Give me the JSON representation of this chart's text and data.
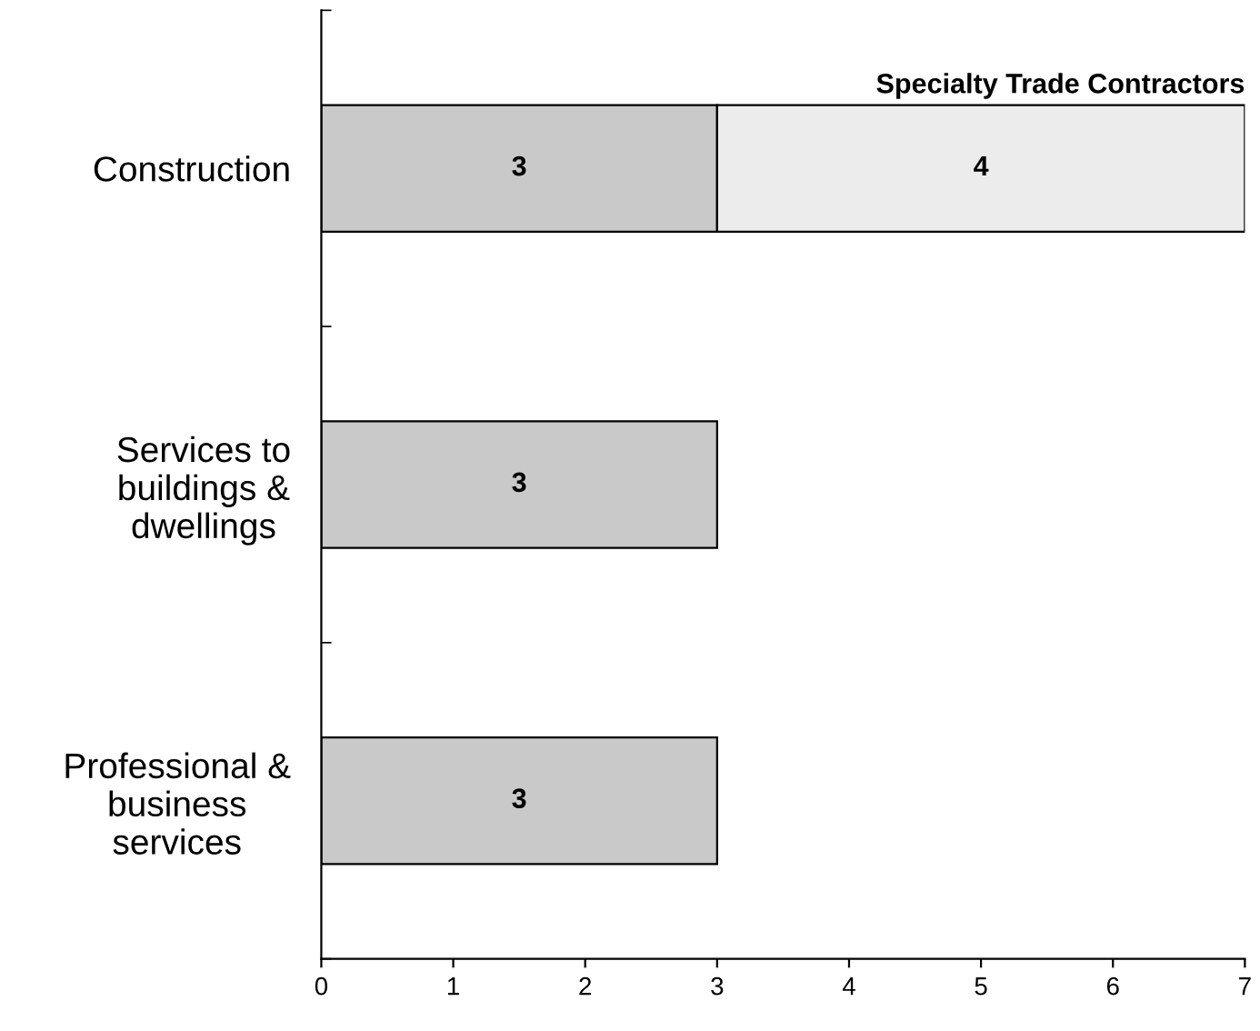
{
  "chart_data": {
    "type": "bar",
    "orientation": "horizontal",
    "stacked": true,
    "categories": [
      "Construction",
      "Services to\nbuildings &\ndwellings",
      "Professional &\nbusiness\nservices"
    ],
    "series": [
      {
        "color": "#c9c9c9",
        "values": [
          3,
          3,
          3
        ]
      },
      {
        "name": "Specialty Trade Contractors",
        "color": "#ececec",
        "values": [
          4,
          null,
          null
        ]
      }
    ],
    "xlim": [
      0,
      7
    ],
    "xticks": [
      0,
      1,
      2,
      3,
      4,
      5,
      6,
      7
    ],
    "data_labels": true,
    "grid": false,
    "legend": false
  }
}
